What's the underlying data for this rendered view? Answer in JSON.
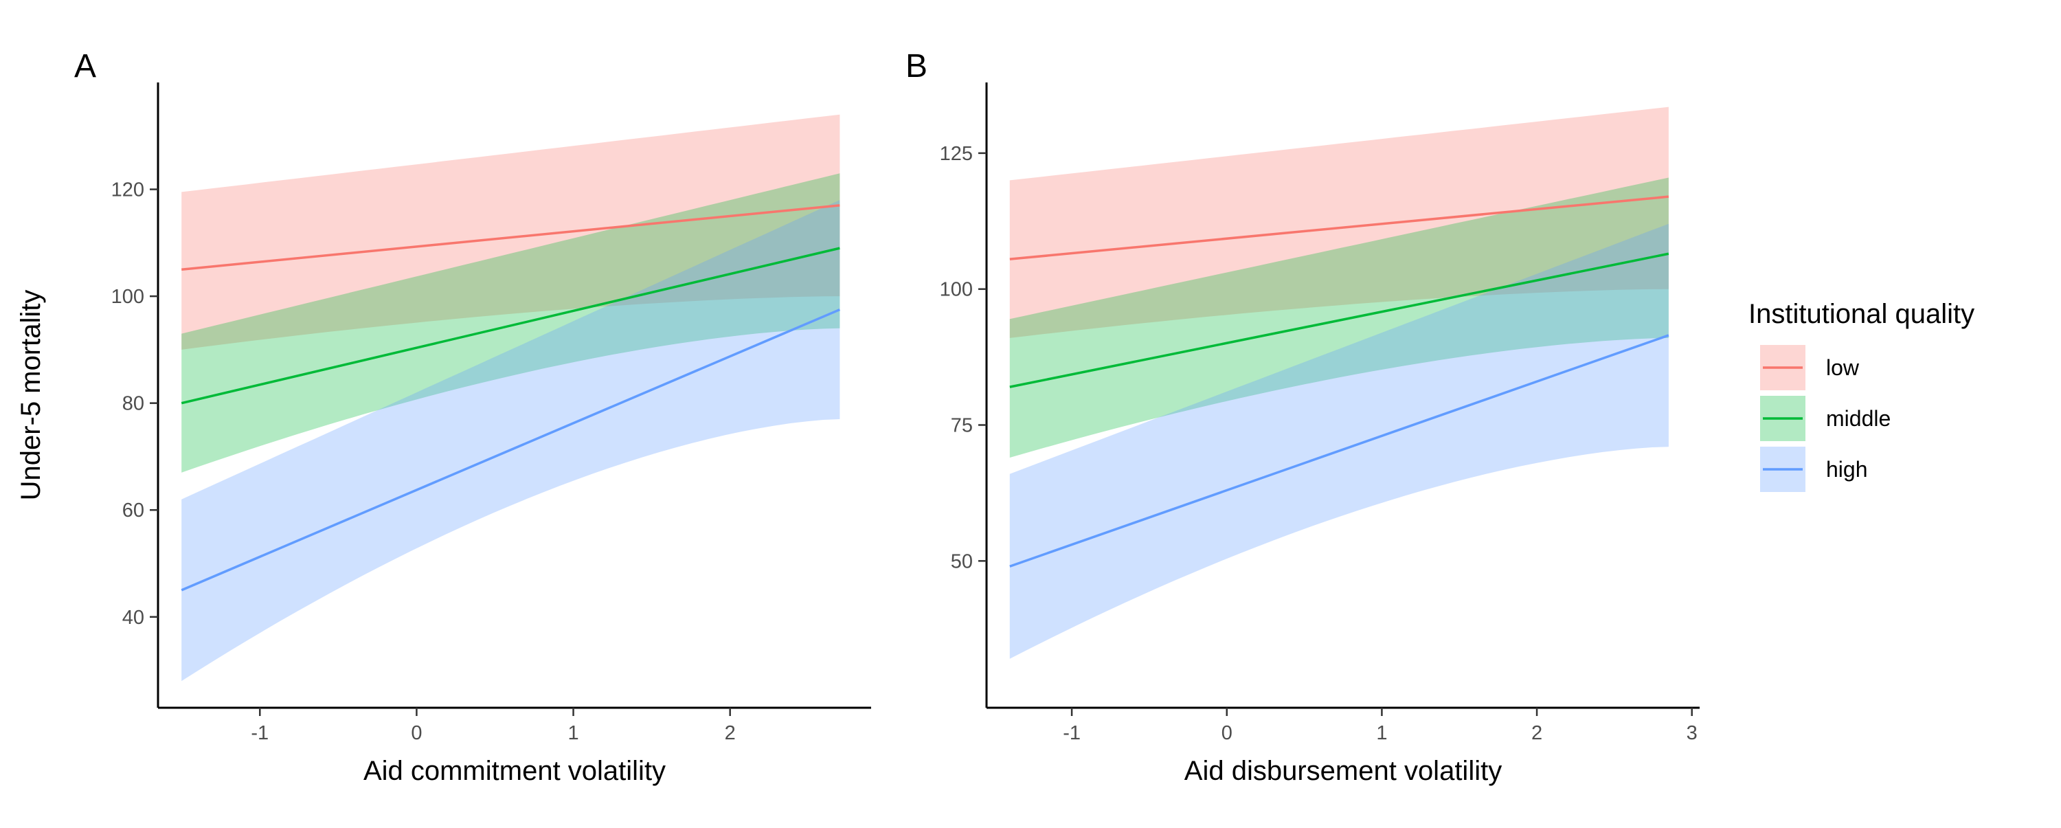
{
  "chart_data": [
    {
      "type": "line",
      "panel": "A",
      "title": "",
      "xlabel": "Aid commitment volatility",
      "ylabel": "Under-5 mortality",
      "xlim": [
        -1.65,
        2.9
      ],
      "ylim": [
        23,
        140
      ],
      "xticks": [
        -1,
        0,
        1,
        2
      ],
      "yticks": [
        40,
        60,
        80,
        100,
        120
      ],
      "grid": false,
      "series": [
        {
          "name": "low",
          "color": "#F8766D",
          "x": [
            -1.5,
            2.7
          ],
          "y": [
            105,
            117
          ],
          "lower": [
            90,
            100
          ],
          "upper": [
            119.5,
            134
          ]
        },
        {
          "name": "middle",
          "color": "#00BA38",
          "x": [
            -1.5,
            2.7
          ],
          "y": [
            80,
            109
          ],
          "lower": [
            67,
            94
          ],
          "upper": [
            93,
            123
          ]
        },
        {
          "name": "high",
          "color": "#619CFF",
          "x": [
            -1.5,
            2.7
          ],
          "y": [
            45,
            97.5
          ],
          "lower": [
            28,
            77
          ],
          "upper": [
            62,
            118
          ]
        }
      ]
    },
    {
      "type": "line",
      "panel": "B",
      "title": "",
      "xlabel": "Aid disbursement volatility",
      "ylabel": "",
      "xlim": [
        -1.55,
        3.05
      ],
      "ylim": [
        23,
        138
      ],
      "xticks": [
        -1,
        0,
        1,
        2,
        3
      ],
      "yticks": [
        50,
        75,
        100,
        125
      ],
      "grid": false,
      "series": [
        {
          "name": "low",
          "color": "#F8766D",
          "x": [
            -1.4,
            2.85
          ],
          "y": [
            105.5,
            117
          ],
          "lower": [
            91,
            100
          ],
          "upper": [
            120,
            133.5
          ]
        },
        {
          "name": "middle",
          "color": "#00BA38",
          "x": [
            -1.4,
            2.85
          ],
          "y": [
            82,
            106.5
          ],
          "lower": [
            69,
            91
          ],
          "upper": [
            94.5,
            120.5
          ]
        },
        {
          "name": "high",
          "color": "#619CFF",
          "x": [
            -1.4,
            2.85
          ],
          "y": [
            49,
            91.5
          ],
          "lower": [
            32,
            71
          ],
          "upper": [
            66,
            112
          ]
        }
      ]
    }
  ],
  "legend": {
    "title": "Institutional quality",
    "position": "right",
    "items": [
      {
        "label": "low",
        "color": "#F8766D"
      },
      {
        "label": "middle",
        "color": "#00BA38"
      },
      {
        "label": "high",
        "color": "#619CFF"
      }
    ]
  }
}
